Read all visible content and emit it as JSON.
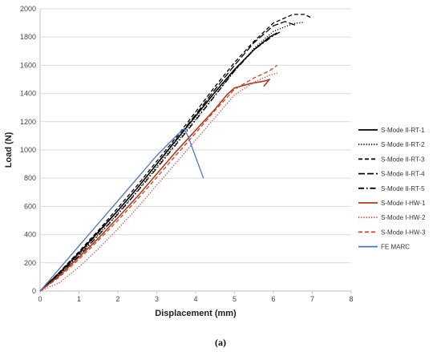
{
  "caption": "(a)",
  "chart_data": {
    "type": "line",
    "xlabel": "Displacement (mm)",
    "ylabel": "Load (N)",
    "xlim": [
      0,
      8
    ],
    "ylim": [
      0,
      2000
    ],
    "xticks": [
      0,
      1,
      2,
      3,
      4,
      5,
      6,
      7,
      8
    ],
    "yticks": [
      0,
      200,
      400,
      600,
      800,
      1000,
      1200,
      1400,
      1600,
      1800,
      2000
    ],
    "grid": "horizontal",
    "legend_position": "right",
    "series": [
      {
        "name": "S-Mode II-RT-1",
        "color": "#000000",
        "dash": "solid",
        "points": [
          [
            0,
            0
          ],
          [
            0.5,
            130
          ],
          [
            1,
            270
          ],
          [
            1.5,
            420
          ],
          [
            2,
            570
          ],
          [
            2.5,
            730
          ],
          [
            3,
            900
          ],
          [
            3.5,
            1070
          ],
          [
            4,
            1240
          ],
          [
            4.5,
            1410
          ],
          [
            5,
            1570
          ],
          [
            5.5,
            1710
          ],
          [
            5.9,
            1800
          ],
          [
            6.1,
            1830
          ]
        ]
      },
      {
        "name": "S-Mode II-RT-2",
        "color": "#000000",
        "dash": "dot",
        "points": [
          [
            0,
            0
          ],
          [
            0.5,
            120
          ],
          [
            1,
            255
          ],
          [
            1.5,
            400
          ],
          [
            2,
            550
          ],
          [
            2.5,
            710
          ],
          [
            3,
            880
          ],
          [
            3.5,
            1050
          ],
          [
            4,
            1220
          ],
          [
            4.5,
            1390
          ],
          [
            5,
            1560
          ],
          [
            5.5,
            1720
          ],
          [
            6,
            1840
          ],
          [
            6.5,
            1895
          ],
          [
            6.8,
            1905
          ]
        ]
      },
      {
        "name": "S-Mode II-RT-3",
        "color": "#000000",
        "dash": "dash",
        "points": [
          [
            0,
            0
          ],
          [
            0.5,
            135
          ],
          [
            1,
            280
          ],
          [
            1.5,
            430
          ],
          [
            2,
            590
          ],
          [
            2.5,
            750
          ],
          [
            3,
            920
          ],
          [
            3.5,
            1090
          ],
          [
            4,
            1270
          ],
          [
            4.5,
            1450
          ],
          [
            5,
            1620
          ],
          [
            5.5,
            1770
          ],
          [
            6,
            1900
          ],
          [
            6.5,
            1960
          ],
          [
            6.8,
            1960
          ],
          [
            6.95,
            1940
          ]
        ]
      },
      {
        "name": "S-Mode II-RT-4",
        "color": "#000000",
        "dash": "longdash",
        "points": [
          [
            0,
            0
          ],
          [
            0.5,
            125
          ],
          [
            1,
            265
          ],
          [
            1.5,
            415
          ],
          [
            2,
            570
          ],
          [
            2.5,
            730
          ],
          [
            3,
            900
          ],
          [
            3.5,
            1075
          ],
          [
            4,
            1250
          ],
          [
            4.5,
            1430
          ],
          [
            5,
            1600
          ],
          [
            5.5,
            1760
          ],
          [
            6,
            1880
          ],
          [
            6.3,
            1910
          ],
          [
            6.6,
            1880
          ]
        ]
      },
      {
        "name": "S-Mode II-RT-5",
        "color": "#000000",
        "dash": "dashdot",
        "points": [
          [
            0,
            0
          ],
          [
            0.5,
            115
          ],
          [
            1,
            250
          ],
          [
            1.5,
            395
          ],
          [
            2,
            545
          ],
          [
            2.5,
            705
          ],
          [
            3,
            870
          ],
          [
            3.5,
            1040
          ],
          [
            4,
            1210
          ],
          [
            4.5,
            1385
          ],
          [
            5,
            1560
          ],
          [
            5.5,
            1710
          ],
          [
            6,
            1810
          ],
          [
            6.2,
            1840
          ]
        ]
      },
      {
        "name": "S-Mode I-HW-1",
        "color": "#b03a1e",
        "dash": "solid",
        "points": [
          [
            0,
            0
          ],
          [
            0.5,
            110
          ],
          [
            1,
            240
          ],
          [
            1.5,
            375
          ],
          [
            2,
            520
          ],
          [
            2.5,
            670
          ],
          [
            3,
            830
          ],
          [
            3.5,
            990
          ],
          [
            4,
            1140
          ],
          [
            4.5,
            1290
          ],
          [
            4.8,
            1390
          ],
          [
            5,
            1440
          ],
          [
            5.4,
            1470
          ],
          [
            5.8,
            1490
          ],
          [
            5.9,
            1500
          ],
          [
            5.75,
            1450
          ]
        ]
      },
      {
        "name": "S-Mode I-HW-2",
        "color": "#e03030",
        "dash": "dot",
        "points": [
          [
            0,
            0
          ],
          [
            0.5,
            60
          ],
          [
            1,
            170
          ],
          [
            1.5,
            300
          ],
          [
            2,
            440
          ],
          [
            2.5,
            590
          ],
          [
            3,
            750
          ],
          [
            3.5,
            910
          ],
          [
            4,
            1070
          ],
          [
            4.5,
            1230
          ],
          [
            5,
            1390
          ],
          [
            5.5,
            1480
          ],
          [
            5.9,
            1530
          ],
          [
            6.1,
            1545
          ]
        ]
      },
      {
        "name": "S-Mode I-HW-3",
        "color": "#d04020",
        "dash": "dash",
        "points": [
          [
            0,
            0
          ],
          [
            0.5,
            100
          ],
          [
            1,
            225
          ],
          [
            1.5,
            360
          ],
          [
            2,
            500
          ],
          [
            2.5,
            650
          ],
          [
            3,
            805
          ],
          [
            3.5,
            965
          ],
          [
            4,
            1120
          ],
          [
            4.5,
            1280
          ],
          [
            5,
            1430
          ],
          [
            5.5,
            1510
          ],
          [
            5.9,
            1560
          ],
          [
            6.1,
            1600
          ]
        ]
      },
      {
        "name": "FE MARC",
        "color": "#4a72c4",
        "dash": "solid",
        "points": [
          [
            0,
            0
          ],
          [
            0.5,
            160
          ],
          [
            1,
            320
          ],
          [
            1.5,
            480
          ],
          [
            2,
            640
          ],
          [
            2.5,
            800
          ],
          [
            3,
            960
          ],
          [
            3.5,
            1100
          ],
          [
            3.7,
            1150
          ],
          [
            3.8,
            1100
          ],
          [
            4.0,
            950
          ],
          [
            4.2,
            800
          ]
        ]
      }
    ]
  }
}
